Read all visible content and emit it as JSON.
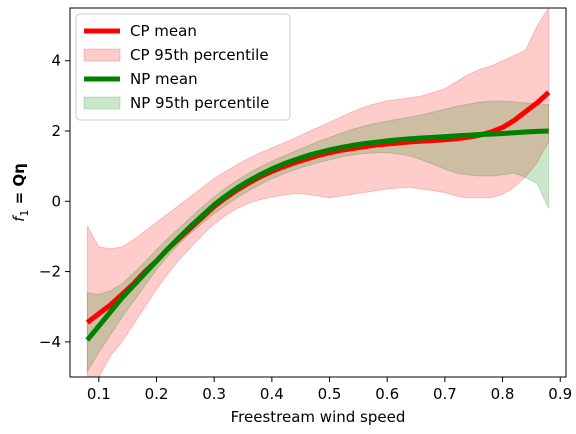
{
  "chart_data": {
    "type": "line",
    "title": "",
    "xlabel": "Freestream wind speed",
    "ylabel_prefix": "f",
    "ylabel_sub": "1",
    "ylabel_rest": " = Qη",
    "xlim": [
      0.05,
      0.91
    ],
    "ylim": [
      -5.0,
      5.5
    ],
    "xticks": [
      0.1,
      0.2,
      0.3,
      0.4,
      0.5,
      0.6,
      0.7,
      0.8,
      0.9
    ],
    "xtick_labels": [
      "0.1",
      "0.2",
      "0.3",
      "0.4",
      "0.5",
      "0.6",
      "0.7",
      "0.8",
      "0.9"
    ],
    "yticks": [
      -4,
      -2,
      0,
      2,
      4
    ],
    "ytick_labels": [
      "−4",
      "−2",
      "0",
      "2",
      "4"
    ],
    "grid": false,
    "legend_position": "top-left",
    "series": [
      {
        "name": "CP mean",
        "color": "#ff0000",
        "x": [
          0.08,
          0.1,
          0.12,
          0.14,
          0.16,
          0.18,
          0.2,
          0.22,
          0.24,
          0.26,
          0.28,
          0.3,
          0.32,
          0.34,
          0.36,
          0.38,
          0.4,
          0.42,
          0.44,
          0.46,
          0.48,
          0.5,
          0.52,
          0.54,
          0.56,
          0.58,
          0.6,
          0.62,
          0.64,
          0.66,
          0.68,
          0.7,
          0.72,
          0.74,
          0.76,
          0.78,
          0.8,
          0.82,
          0.84,
          0.86,
          0.88
        ],
        "y": [
          -3.45,
          -3.2,
          -2.95,
          -2.65,
          -2.35,
          -2.0,
          -1.7,
          -1.35,
          -1.05,
          -0.75,
          -0.45,
          -0.15,
          0.1,
          0.32,
          0.52,
          0.7,
          0.85,
          0.98,
          1.1,
          1.2,
          1.3,
          1.38,
          1.45,
          1.5,
          1.55,
          1.6,
          1.63,
          1.66,
          1.69,
          1.71,
          1.73,
          1.75,
          1.78,
          1.82,
          1.88,
          1.97,
          2.1,
          2.3,
          2.55,
          2.8,
          3.1
        ]
      },
      {
        "name": "NP mean",
        "color": "#008000",
        "x": [
          0.08,
          0.1,
          0.12,
          0.14,
          0.16,
          0.18,
          0.2,
          0.22,
          0.24,
          0.26,
          0.28,
          0.3,
          0.32,
          0.34,
          0.36,
          0.38,
          0.4,
          0.42,
          0.44,
          0.46,
          0.48,
          0.5,
          0.52,
          0.54,
          0.56,
          0.58,
          0.6,
          0.62,
          0.64,
          0.66,
          0.68,
          0.7,
          0.72,
          0.74,
          0.76,
          0.78,
          0.8,
          0.82,
          0.84,
          0.86,
          0.88
        ],
        "y": [
          -3.95,
          -3.55,
          -3.15,
          -2.75,
          -2.4,
          -2.05,
          -1.7,
          -1.35,
          -1.02,
          -0.7,
          -0.4,
          -0.1,
          0.15,
          0.38,
          0.58,
          0.76,
          0.92,
          1.06,
          1.18,
          1.29,
          1.38,
          1.46,
          1.53,
          1.59,
          1.64,
          1.68,
          1.72,
          1.75,
          1.78,
          1.8,
          1.82,
          1.84,
          1.86,
          1.88,
          1.9,
          1.91,
          1.93,
          1.95,
          1.97,
          1.99,
          2.0
        ]
      }
    ],
    "bands": [
      {
        "name": "CP 95th percentile",
        "color": "#ff0000",
        "opacity": 0.2,
        "x": [
          0.08,
          0.1,
          0.12,
          0.14,
          0.16,
          0.18,
          0.2,
          0.22,
          0.24,
          0.26,
          0.28,
          0.3,
          0.32,
          0.34,
          0.36,
          0.38,
          0.4,
          0.42,
          0.44,
          0.46,
          0.48,
          0.5,
          0.52,
          0.54,
          0.56,
          0.58,
          0.6,
          0.62,
          0.64,
          0.66,
          0.68,
          0.7,
          0.72,
          0.74,
          0.76,
          0.78,
          0.8,
          0.82,
          0.84,
          0.86,
          0.88
        ],
        "lower": [
          -5.0,
          -5.0,
          -4.4,
          -4.0,
          -3.5,
          -3.0,
          -2.5,
          -2.05,
          -1.65,
          -1.3,
          -0.95,
          -0.65,
          -0.4,
          -0.2,
          -0.05,
          0.05,
          0.12,
          0.18,
          0.22,
          0.2,
          0.15,
          0.1,
          0.15,
          0.2,
          0.25,
          0.3,
          0.35,
          0.38,
          0.4,
          0.35,
          0.3,
          0.25,
          0.15,
          0.1,
          0.1,
          0.1,
          0.2,
          0.4,
          0.7,
          1.1,
          1.7
        ],
        "upper": [
          -0.7,
          -1.3,
          -1.35,
          -1.3,
          -1.1,
          -0.85,
          -0.6,
          -0.35,
          -0.1,
          0.15,
          0.4,
          0.65,
          0.85,
          1.05,
          1.22,
          1.38,
          1.52,
          1.66,
          1.8,
          1.95,
          2.1,
          2.25,
          2.4,
          2.55,
          2.68,
          2.78,
          2.86,
          2.9,
          2.95,
          3.0,
          3.1,
          3.2,
          3.4,
          3.6,
          3.75,
          3.85,
          4.0,
          4.15,
          4.3,
          5.0,
          5.5
        ]
      },
      {
        "name": "NP 95th percentile",
        "color": "#008000",
        "opacity": 0.2,
        "x": [
          0.08,
          0.1,
          0.12,
          0.14,
          0.16,
          0.18,
          0.2,
          0.22,
          0.24,
          0.26,
          0.28,
          0.3,
          0.32,
          0.34,
          0.36,
          0.38,
          0.4,
          0.42,
          0.44,
          0.46,
          0.48,
          0.5,
          0.52,
          0.54,
          0.56,
          0.58,
          0.6,
          0.62,
          0.64,
          0.66,
          0.68,
          0.7,
          0.72,
          0.74,
          0.76,
          0.78,
          0.8,
          0.82,
          0.84,
          0.86,
          0.88
        ],
        "lower": [
          -4.85,
          -4.3,
          -3.8,
          -3.3,
          -2.85,
          -2.4,
          -1.95,
          -1.55,
          -1.2,
          -0.9,
          -0.62,
          -0.35,
          -0.12,
          0.1,
          0.3,
          0.48,
          0.64,
          0.78,
          0.9,
          1.0,
          1.1,
          1.18,
          1.26,
          1.32,
          1.36,
          1.38,
          1.38,
          1.35,
          1.28,
          1.18,
          1.05,
          0.92,
          0.8,
          0.75,
          0.72,
          0.72,
          0.75,
          0.8,
          0.68,
          0.5,
          -0.2
        ],
        "upper": [
          -2.6,
          -2.65,
          -2.55,
          -2.35,
          -2.05,
          -1.72,
          -1.38,
          -1.05,
          -0.75,
          -0.45,
          -0.15,
          0.12,
          0.38,
          0.6,
          0.8,
          0.98,
          1.14,
          1.28,
          1.42,
          1.56,
          1.7,
          1.82,
          1.94,
          2.05,
          2.14,
          2.22,
          2.28,
          2.34,
          2.4,
          2.46,
          2.54,
          2.62,
          2.7,
          2.76,
          2.82,
          2.85,
          2.85,
          2.83,
          2.8,
          2.78,
          2.75
        ]
      }
    ],
    "legend": [
      {
        "label": "CP mean",
        "kind": "line",
        "color": "#ff0000"
      },
      {
        "label": "CP 95th percentile",
        "kind": "patch",
        "color": "#ff0000"
      },
      {
        "label": "NP mean",
        "kind": "line",
        "color": "#008000"
      },
      {
        "label": "NP 95th percentile",
        "kind": "patch",
        "color": "#008000"
      }
    ]
  }
}
